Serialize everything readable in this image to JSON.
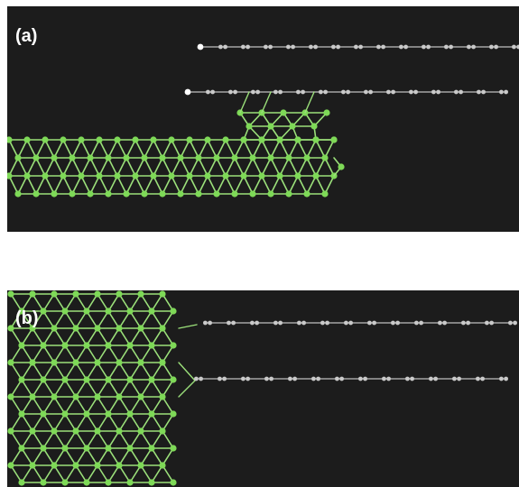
{
  "panels": [
    {
      "label": "(a)"
    },
    {
      "label": "(b)"
    }
  ],
  "colors": {
    "background": "#1c1c1c",
    "metal_atom": "#7ed957",
    "metal_bond": "#9be07a",
    "chain_atom": "#c9c9c9",
    "chain_bond": "#bfbfbf",
    "end_atom": "#ffffff"
  },
  "legend": {
    "metal": "metal-atom-icon",
    "chain": "carbon-chain-atom-icon"
  }
}
